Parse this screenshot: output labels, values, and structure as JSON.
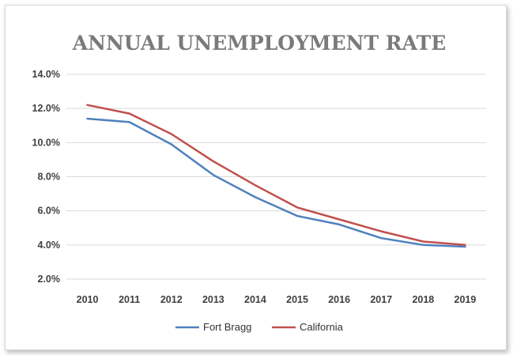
{
  "chart_data": {
    "type": "line",
    "title": "ANNUAL UNEMPLOYMENT RATE",
    "xlabel": "",
    "ylabel": "",
    "categories": [
      "2010",
      "2011",
      "2012",
      "2013",
      "2014",
      "2015",
      "2016",
      "2017",
      "2018",
      "2019"
    ],
    "y_tick_labels": [
      "14.0%",
      "12.0%",
      "10.0%",
      "8.0%",
      "6.0%",
      "4.0%",
      "2.0%"
    ],
    "ylim": [
      2.0,
      14.0
    ],
    "grid": true,
    "legend_position": "bottom",
    "series": [
      {
        "name": "Fort Bragg",
        "color": "#4f81bd",
        "values": [
          11.4,
          11.2,
          9.9,
          8.1,
          6.8,
          5.7,
          5.2,
          4.4,
          4.0,
          3.9
        ]
      },
      {
        "name": "California",
        "color": "#c0504d",
        "values": [
          12.2,
          11.7,
          10.5,
          8.9,
          7.5,
          6.2,
          5.5,
          4.8,
          4.2,
          4.0
        ]
      }
    ]
  }
}
